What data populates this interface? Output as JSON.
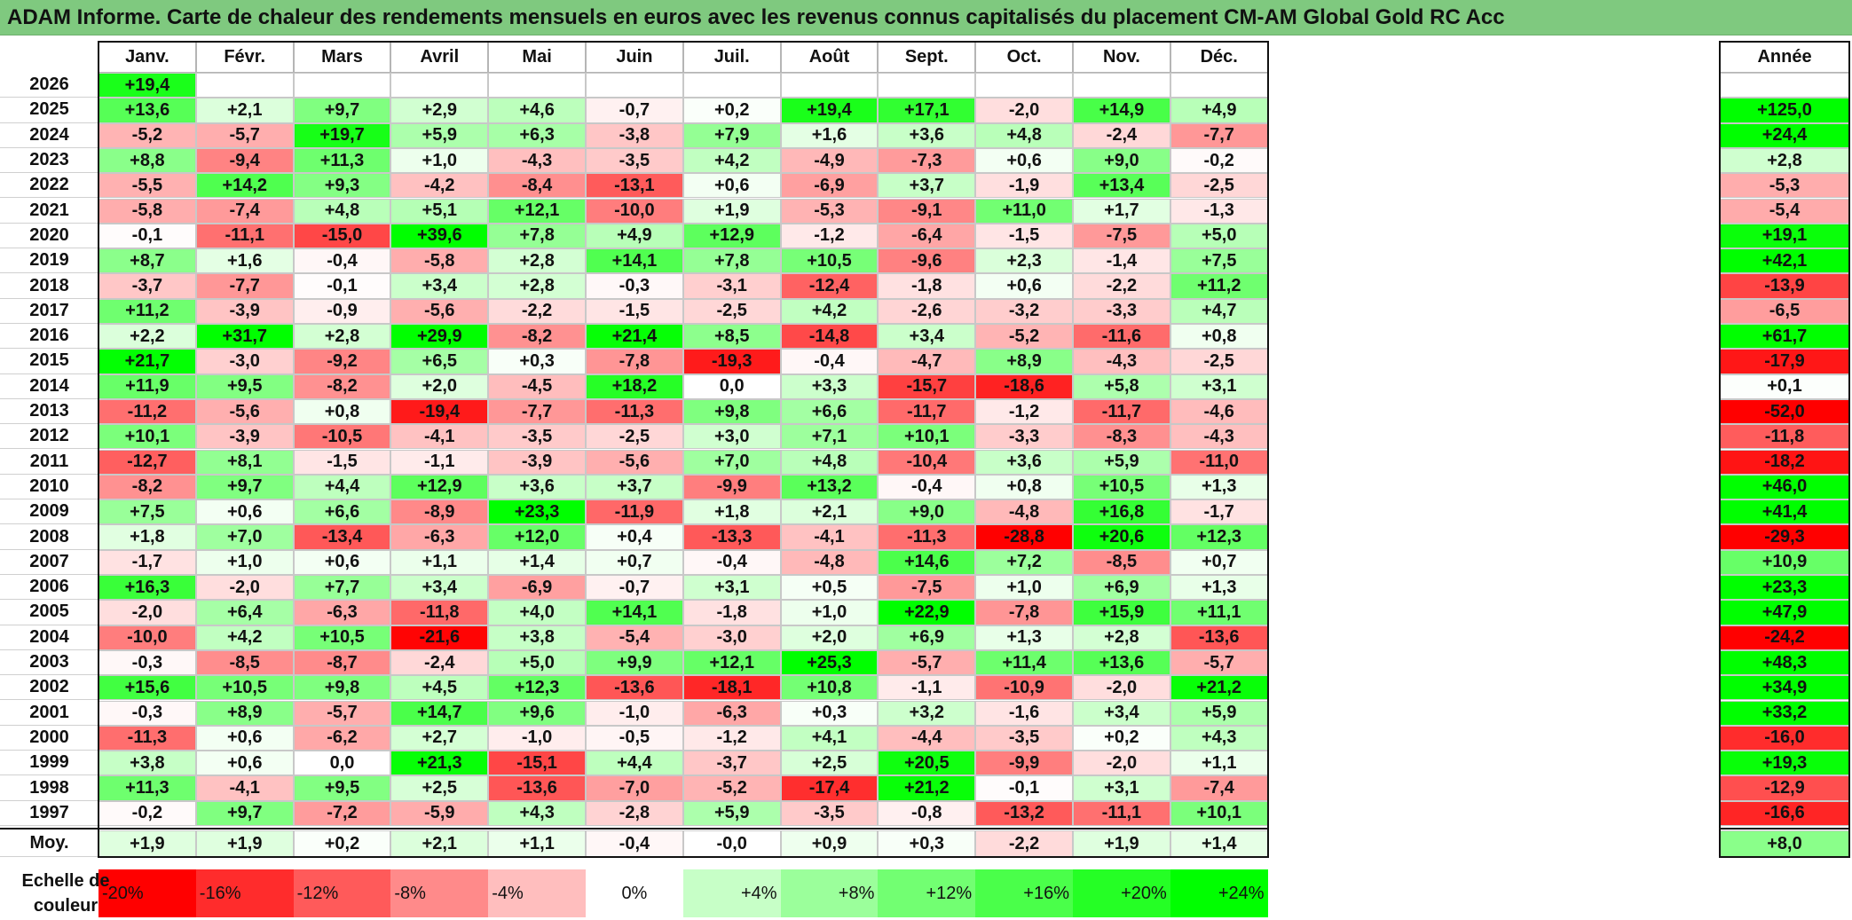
{
  "title": "ADAM Informe. Carte de chaleur des rendements mensuels en euros avec les revenus connus capitalisés du placement CM-AM Global Gold RC Acc",
  "months": [
    "Janv.",
    "Févr.",
    "Mars",
    "Avril",
    "Mai",
    "Juin",
    "Juil.",
    "Août",
    "Sept.",
    "Oct.",
    "Nov.",
    "Déc."
  ],
  "annual_header": "Année",
  "average_label": "Moy.",
  "scale_label": "Echelle de couleur",
  "colors": {
    "strong_red": "#ff0000",
    "white": "#ffffff",
    "strong_green": "#00ff00",
    "title_bar": "#7fc97f"
  },
  "chart_data": {
    "type": "heatmap",
    "title": "ADAM Informe. Carte de chaleur des rendements mensuels en euros avec les revenus connus capitalisés du placement CM-AM Global Gold RC Acc",
    "columns": [
      "Janv.",
      "Févr.",
      "Mars",
      "Avril",
      "Mai",
      "Juin",
      "Juil.",
      "Août",
      "Sept.",
      "Oct.",
      "Nov.",
      "Déc."
    ],
    "rows": [
      {
        "year": "2026",
        "months": [
          "+19,4",
          "",
          "",
          "",
          "",
          "",
          "",
          "",
          "",
          "",
          "",
          ""
        ],
        "annual": ""
      },
      {
        "year": "2025",
        "months": [
          "+13,6",
          "+2,1",
          "+9,7",
          "+2,9",
          "+4,6",
          "-0,7",
          "+0,2",
          "+19,4",
          "+17,1",
          "-2,0",
          "+14,9",
          "+4,9"
        ],
        "annual": "+125,0"
      },
      {
        "year": "2024",
        "months": [
          "-5,2",
          "-5,7",
          "+19,7",
          "+5,9",
          "+6,3",
          "-3,8",
          "+7,9",
          "+1,6",
          "+3,6",
          "+4,8",
          "-2,4",
          "-7,7"
        ],
        "annual": "+24,4"
      },
      {
        "year": "2023",
        "months": [
          "+8,8",
          "-9,4",
          "+11,3",
          "+1,0",
          "-4,3",
          "-3,5",
          "+4,2",
          "-4,9",
          "-7,3",
          "+0,6",
          "+9,0",
          "-0,2"
        ],
        "annual": "+2,8"
      },
      {
        "year": "2022",
        "months": [
          "-5,5",
          "+14,2",
          "+9,3",
          "-4,2",
          "-8,4",
          "-13,1",
          "+0,6",
          "-6,9",
          "+3,7",
          "-1,9",
          "+13,4",
          "-2,5"
        ],
        "annual": "-5,3"
      },
      {
        "year": "2021",
        "months": [
          "-5,8",
          "-7,4",
          "+4,8",
          "+5,1",
          "+12,1",
          "-10,0",
          "+1,9",
          "-5,3",
          "-9,1",
          "+11,0",
          "+1,7",
          "-1,3"
        ],
        "annual": "-5,4"
      },
      {
        "year": "2020",
        "months": [
          "-0,1",
          "-11,1",
          "-15,0",
          "+39,6",
          "+7,8",
          "+4,9",
          "+12,9",
          "-1,2",
          "-6,4",
          "-1,5",
          "-7,5",
          "+5,0"
        ],
        "annual": "+19,1"
      },
      {
        "year": "2019",
        "months": [
          "+8,7",
          "+1,6",
          "-0,4",
          "-5,8",
          "+2,8",
          "+14,1",
          "+7,8",
          "+10,5",
          "-9,6",
          "+2,3",
          "-1,4",
          "+7,5"
        ],
        "annual": "+42,1"
      },
      {
        "year": "2018",
        "months": [
          "-3,7",
          "-7,7",
          "-0,1",
          "+3,4",
          "+2,8",
          "-0,3",
          "-3,1",
          "-12,4",
          "-1,8",
          "+0,6",
          "-2,2",
          "+11,2"
        ],
        "annual": "-13,9"
      },
      {
        "year": "2017",
        "months": [
          "+11,2",
          "-3,9",
          "-0,9",
          "-5,6",
          "-2,2",
          "-1,5",
          "-2,5",
          "+4,2",
          "-2,6",
          "-3,2",
          "-3,3",
          "+4,7"
        ],
        "annual": "-6,5"
      },
      {
        "year": "2016",
        "months": [
          "+2,2",
          "+31,7",
          "+2,8",
          "+29,9",
          "-8,2",
          "+21,4",
          "+8,5",
          "-14,8",
          "+3,4",
          "-5,2",
          "-11,6",
          "+0,8"
        ],
        "annual": "+61,7"
      },
      {
        "year": "2015",
        "months": [
          "+21,7",
          "-3,0",
          "-9,2",
          "+6,5",
          "+0,3",
          "-7,8",
          "-19,3",
          "-0,4",
          "-4,7",
          "+8,9",
          "-4,3",
          "-2,5"
        ],
        "annual": "-17,9"
      },
      {
        "year": "2014",
        "months": [
          "+11,9",
          "+9,5",
          "-8,2",
          "+2,0",
          "-4,5",
          "+18,2",
          "0,0",
          "+3,3",
          "-15,7",
          "-18,6",
          "+5,8",
          "+3,1"
        ],
        "annual": "+0,1"
      },
      {
        "year": "2013",
        "months": [
          "-11,2",
          "-5,6",
          "+0,8",
          "-19,4",
          "-7,7",
          "-11,3",
          "+9,8",
          "+6,6",
          "-11,7",
          "-1,2",
          "-11,7",
          "-4,6"
        ],
        "annual": "-52,0"
      },
      {
        "year": "2012",
        "months": [
          "+10,1",
          "-3,9",
          "-10,5",
          "-4,1",
          "-3,5",
          "-2,5",
          "+3,0",
          "+7,1",
          "+10,1",
          "-3,3",
          "-8,3",
          "-4,3"
        ],
        "annual": "-11,8"
      },
      {
        "year": "2011",
        "months": [
          "-12,7",
          "+8,1",
          "-1,5",
          "-1,1",
          "-3,9",
          "-5,6",
          "+7,0",
          "+4,8",
          "-10,4",
          "+3,6",
          "+5,9",
          "-11,0"
        ],
        "annual": "-18,2"
      },
      {
        "year": "2010",
        "months": [
          "-8,2",
          "+9,7",
          "+4,4",
          "+12,9",
          "+3,6",
          "+3,7",
          "-9,9",
          "+13,2",
          "-0,4",
          "+0,8",
          "+10,5",
          "+1,3"
        ],
        "annual": "+46,0"
      },
      {
        "year": "2009",
        "months": [
          "+7,5",
          "+0,6",
          "+6,6",
          "-8,9",
          "+23,3",
          "-11,9",
          "+1,8",
          "+2,1",
          "+9,0",
          "-4,8",
          "+16,8",
          "-1,7"
        ],
        "annual": "+41,4"
      },
      {
        "year": "2008",
        "months": [
          "+1,8",
          "+7,0",
          "-13,4",
          "-6,3",
          "+12,0",
          "+0,4",
          "-13,3",
          "-4,1",
          "-11,3",
          "-28,8",
          "+20,6",
          "+12,3"
        ],
        "annual": "-29,3"
      },
      {
        "year": "2007",
        "months": [
          "-1,7",
          "+1,0",
          "+0,6",
          "+1,1",
          "+1,4",
          "+0,7",
          "-0,4",
          "-4,8",
          "+14,6",
          "+7,2",
          "-8,5",
          "+0,7"
        ],
        "annual": "+10,9"
      },
      {
        "year": "2006",
        "months": [
          "+16,3",
          "-2,0",
          "+7,7",
          "+3,4",
          "-6,9",
          "-0,7",
          "+3,1",
          "+0,5",
          "-7,5",
          "+1,0",
          "+6,9",
          "+1,3"
        ],
        "annual": "+23,3"
      },
      {
        "year": "2005",
        "months": [
          "-2,0",
          "+6,4",
          "-6,3",
          "-11,8",
          "+4,0",
          "+14,1",
          "-1,8",
          "+1,0",
          "+22,9",
          "-7,8",
          "+15,9",
          "+11,1"
        ],
        "annual": "+47,9"
      },
      {
        "year": "2004",
        "months": [
          "-10,0",
          "+4,2",
          "+10,5",
          "-21,6",
          "+3,8",
          "-5,4",
          "-3,0",
          "+2,0",
          "+6,9",
          "+1,3",
          "+2,8",
          "-13,6"
        ],
        "annual": "-24,2"
      },
      {
        "year": "2003",
        "months": [
          "-0,3",
          "-8,5",
          "-8,7",
          "-2,4",
          "+5,0",
          "+9,9",
          "+12,1",
          "+25,3",
          "-5,7",
          "+11,4",
          "+13,6",
          "-5,7"
        ],
        "annual": "+48,3"
      },
      {
        "year": "2002",
        "months": [
          "+15,6",
          "+10,5",
          "+9,8",
          "+4,5",
          "+12,3",
          "-13,6",
          "-18,1",
          "+10,8",
          "-1,1",
          "-10,9",
          "-2,0",
          "+21,2"
        ],
        "annual": "+34,9"
      },
      {
        "year": "2001",
        "months": [
          "-0,3",
          "+8,9",
          "-5,7",
          "+14,7",
          "+9,6",
          "-1,0",
          "-6,3",
          "+0,3",
          "+3,2",
          "-1,6",
          "+3,4",
          "+5,9"
        ],
        "annual": "+33,2"
      },
      {
        "year": "2000",
        "months": [
          "-11,3",
          "+0,6",
          "-6,2",
          "+2,7",
          "-1,0",
          "-0,5",
          "-1,2",
          "+4,1",
          "-4,4",
          "-3,5",
          "+0,2",
          "+4,3"
        ],
        "annual": "-16,0"
      },
      {
        "year": "1999",
        "months": [
          "+3,8",
          "+0,6",
          "0,0",
          "+21,3",
          "-15,1",
          "+4,4",
          "-3,7",
          "+2,5",
          "+20,5",
          "-9,9",
          "-2,0",
          "+1,1"
        ],
        "annual": "+19,3"
      },
      {
        "year": "1998",
        "months": [
          "+11,3",
          "-4,1",
          "+9,5",
          "+2,5",
          "-13,6",
          "-7,0",
          "-5,2",
          "-17,4",
          "+21,2",
          "-0,1",
          "+3,1",
          "-7,4"
        ],
        "annual": "-12,9"
      },
      {
        "year": "1997",
        "months": [
          "-0,2",
          "+9,7",
          "-7,2",
          "-5,9",
          "+4,3",
          "-2,8",
          "+5,9",
          "-3,5",
          "-0,8",
          "-13,2",
          "-11,1",
          "+10,1"
        ],
        "annual": "-16,6"
      }
    ],
    "average": {
      "months": [
        "+1,9",
        "+1,9",
        "+0,2",
        "+2,1",
        "+1,1",
        "-0,4",
        "-0,0",
        "+0,9",
        "+0,3",
        "-2,2",
        "+1,9",
        "+1,4"
      ],
      "annual": "+8,0"
    },
    "color_scale": {
      "labels": [
        "-20%",
        "-16%",
        "-12%",
        "-8%",
        "-4%",
        "0%",
        "+4%",
        "+8%",
        "+12%",
        "+16%",
        "+20%",
        "+24%"
      ],
      "values": [
        -20,
        -16,
        -12,
        -8,
        -4,
        0,
        4,
        8,
        12,
        16,
        20,
        24
      ]
    }
  }
}
